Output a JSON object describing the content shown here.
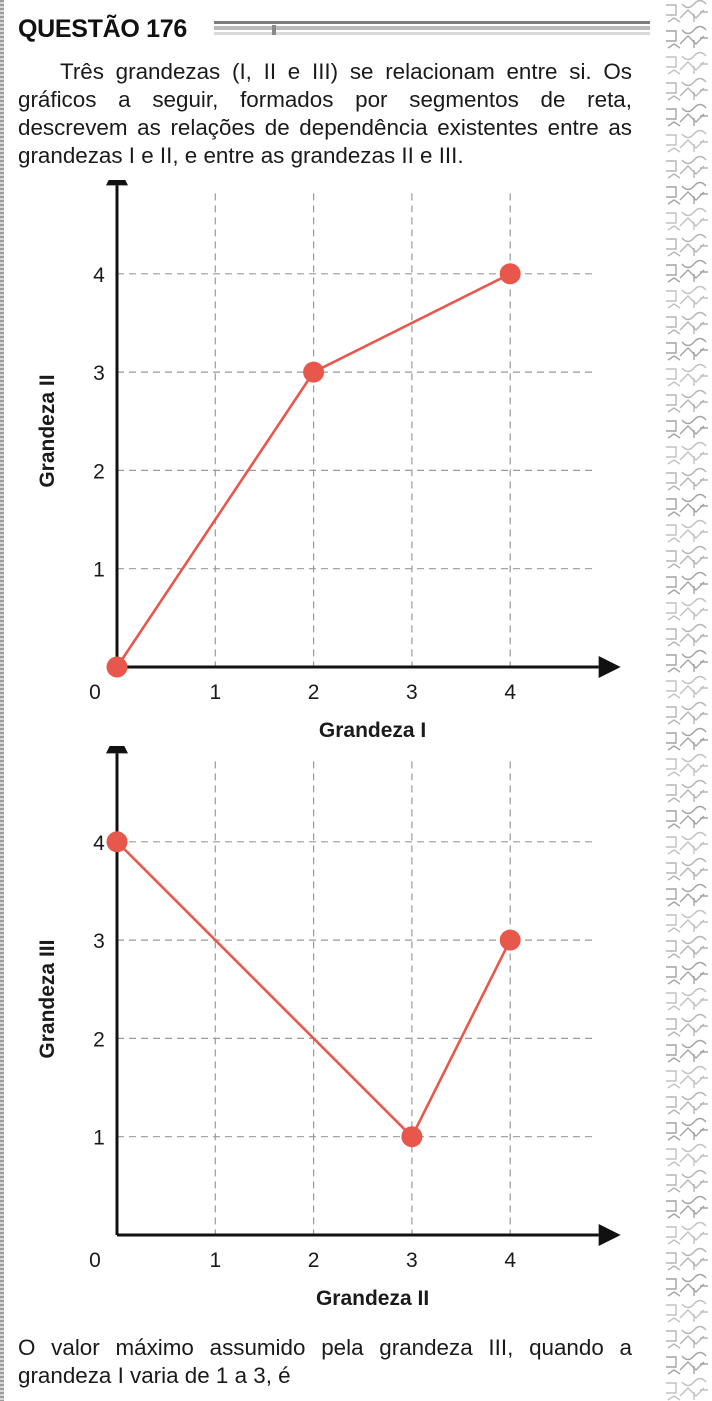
{
  "question": {
    "title": "QUESTÃO 176",
    "intro": "Três grandezas (I, II e III) se relacionam entre si. Os gráficos a seguir, formados por segmentos de reta, descrevem as relações de dependência existentes entre as grandezas I e II, e entre as grandezas II e III.",
    "prompt": "O valor máximo assumido pela grandeza III, quando a grandeza I varia de 1 a 3, é"
  },
  "colors": {
    "line": "#e8574b",
    "point": "#e8574b",
    "axis": "#111111",
    "grid": "#9a9a9a"
  },
  "chart_data": [
    {
      "type": "line",
      "title": "",
      "xlabel": "Grandeza I",
      "ylabel": "Grandeza II",
      "x": [
        0,
        2,
        4
      ],
      "series": [
        {
          "values": [
            0,
            3,
            4
          ]
        }
      ],
      "xticks": [
        "0",
        "1",
        "2",
        "3",
        "4"
      ],
      "yticks": [
        "1",
        "2",
        "3",
        "4"
      ],
      "xlim": [
        0,
        4.9
      ],
      "ylim": [
        0,
        4.9
      ],
      "grid": "dashed"
    },
    {
      "type": "line",
      "title": "",
      "xlabel": "Grandeza II",
      "ylabel": "Grandeza III",
      "x": [
        0,
        3,
        4
      ],
      "series": [
        {
          "values": [
            4,
            1,
            3
          ]
        }
      ],
      "xticks": [
        "0",
        "1",
        "2",
        "3",
        "4"
      ],
      "yticks": [
        "1",
        "2",
        "3",
        "4"
      ],
      "xlim": [
        0,
        4.9
      ],
      "ylim": [
        0,
        4.9
      ],
      "grid": "dashed"
    }
  ]
}
